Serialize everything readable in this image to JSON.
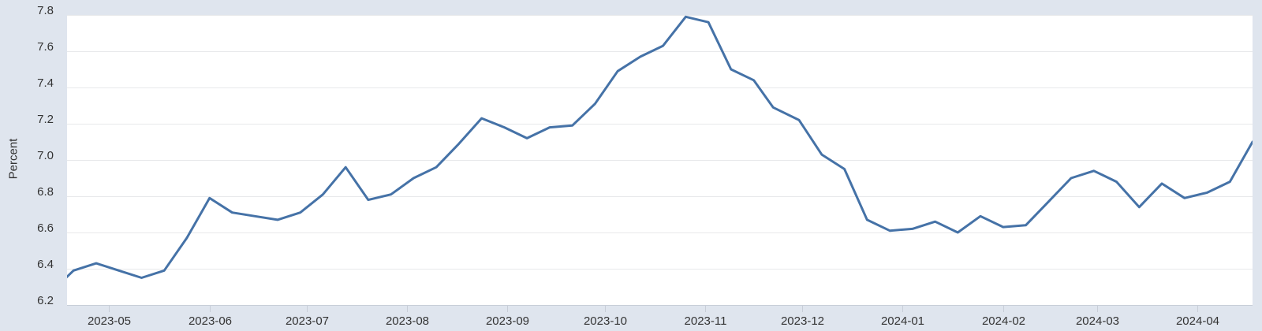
{
  "chart_data": {
    "type": "line",
    "title": "",
    "xlabel": "",
    "ylabel": "Percent",
    "ylim": [
      6.2,
      7.8
    ],
    "x_range": [
      "2023-04-18",
      "2024-04-18"
    ],
    "grid": "horizontal",
    "legend": "none",
    "yticks": [
      {
        "label": "7.8",
        "value": 7.8
      },
      {
        "label": "7.6",
        "value": 7.6
      },
      {
        "label": "7.4",
        "value": 7.4
      },
      {
        "label": "7.2",
        "value": 7.2
      },
      {
        "label": "7.0",
        "value": 7.0
      },
      {
        "label": "6.8",
        "value": 6.8
      },
      {
        "label": "6.6",
        "value": 6.6
      },
      {
        "label": "6.4",
        "value": 6.4
      },
      {
        "label": "6.2",
        "value": 6.2
      }
    ],
    "xticks": [
      {
        "label": "2023-05",
        "date": "2023-05-01"
      },
      {
        "label": "2023-06",
        "date": "2023-06-01"
      },
      {
        "label": "2023-07",
        "date": "2023-07-01"
      },
      {
        "label": "2023-08",
        "date": "2023-08-01"
      },
      {
        "label": "2023-09",
        "date": "2023-09-01"
      },
      {
        "label": "2023-10",
        "date": "2023-10-01"
      },
      {
        "label": "2023-11",
        "date": "2023-11-01"
      },
      {
        "label": "2023-12",
        "date": "2023-12-01"
      },
      {
        "label": "2024-01",
        "date": "2024-01-01"
      },
      {
        "label": "2024-02",
        "date": "2024-02-01"
      },
      {
        "label": "2024-03",
        "date": "2024-03-01"
      },
      {
        "label": "2024-04",
        "date": "2024-04-01"
      }
    ],
    "series": [
      {
        "name": "",
        "color": "#4572a7",
        "points": [
          [
            "2023-04-13",
            6.27
          ],
          [
            "2023-04-20",
            6.39
          ],
          [
            "2023-04-27",
            6.43
          ],
          [
            "2023-05-04",
            6.39
          ],
          [
            "2023-05-11",
            6.35
          ],
          [
            "2023-05-18",
            6.39
          ],
          [
            "2023-05-25",
            6.57
          ],
          [
            "2023-06-01",
            6.79
          ],
          [
            "2023-06-08",
            6.71
          ],
          [
            "2023-06-15",
            6.69
          ],
          [
            "2023-06-22",
            6.67
          ],
          [
            "2023-06-29",
            6.71
          ],
          [
            "2023-07-06",
            6.81
          ],
          [
            "2023-07-13",
            6.96
          ],
          [
            "2023-07-20",
            6.78
          ],
          [
            "2023-07-27",
            6.81
          ],
          [
            "2023-08-03",
            6.9
          ],
          [
            "2023-08-10",
            6.96
          ],
          [
            "2023-08-17",
            7.09
          ],
          [
            "2023-08-24",
            7.23
          ],
          [
            "2023-08-31",
            7.18
          ],
          [
            "2023-09-07",
            7.12
          ],
          [
            "2023-09-14",
            7.18
          ],
          [
            "2023-09-21",
            7.19
          ],
          [
            "2023-09-28",
            7.31
          ],
          [
            "2023-10-05",
            7.49
          ],
          [
            "2023-10-12",
            7.57
          ],
          [
            "2023-10-19",
            7.63
          ],
          [
            "2023-10-26",
            7.79
          ],
          [
            "2023-11-02",
            7.76
          ],
          [
            "2023-11-09",
            7.5
          ],
          [
            "2023-11-16",
            7.44
          ],
          [
            "2023-11-22",
            7.29
          ],
          [
            "2023-11-30",
            7.22
          ],
          [
            "2023-12-07",
            7.03
          ],
          [
            "2023-12-14",
            6.95
          ],
          [
            "2023-12-21",
            6.67
          ],
          [
            "2023-12-28",
            6.61
          ],
          [
            "2024-01-04",
            6.62
          ],
          [
            "2024-01-11",
            6.66
          ],
          [
            "2024-01-18",
            6.6
          ],
          [
            "2024-01-25",
            6.69
          ],
          [
            "2024-02-01",
            6.63
          ],
          [
            "2024-02-08",
            6.64
          ],
          [
            "2024-02-15",
            6.77
          ],
          [
            "2024-02-22",
            6.9
          ],
          [
            "2024-02-29",
            6.94
          ],
          [
            "2024-03-07",
            6.88
          ],
          [
            "2024-03-14",
            6.74
          ],
          [
            "2024-03-21",
            6.87
          ],
          [
            "2024-03-28",
            6.79
          ],
          [
            "2024-04-04",
            6.82
          ],
          [
            "2024-04-11",
            6.88
          ],
          [
            "2024-04-18",
            7.1
          ]
        ]
      }
    ],
    "colors": {
      "outer_background": "#dfe5ee",
      "plot_background": "#ffffff",
      "gridline": "#e8e9eb",
      "axis_line": "#c8ced8",
      "tick_mark": "#c8ced8",
      "label_text": "#333333",
      "line": "#4572a7"
    }
  }
}
